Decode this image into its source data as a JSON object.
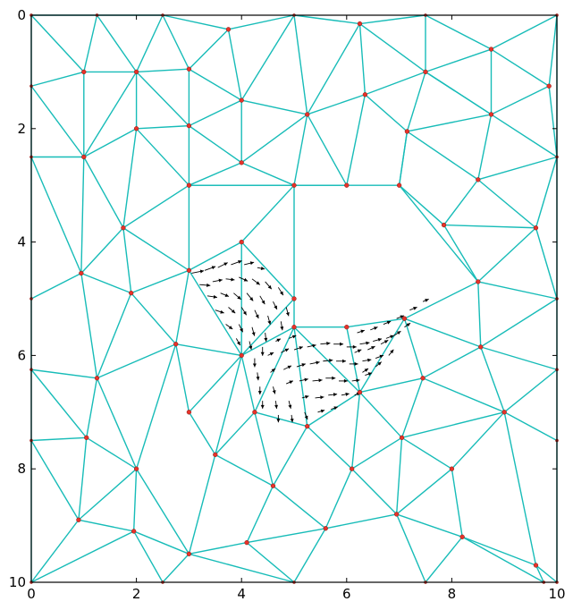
{
  "chart_data": {
    "type": "mesh-quiver",
    "xlim": [
      0,
      10
    ],
    "ylim": [
      0,
      10
    ],
    "y_inverted": true,
    "grid": false,
    "xticks": [
      0,
      2,
      4,
      6,
      8,
      10
    ],
    "yticks": [
      0,
      2,
      4,
      6,
      8,
      10
    ],
    "xtick_labels": [
      "0",
      "2",
      "4",
      "6",
      "8",
      "10"
    ],
    "ytick_labels": [
      "0",
      "2",
      "4",
      "6",
      "8",
      "10"
    ],
    "colors": {
      "mesh": "#17bcb8",
      "nodes": "#e8322a",
      "arrows": "#000000"
    },
    "nodes": [
      [
        0,
        0
      ],
      [
        1.25,
        0
      ],
      [
        2.5,
        0
      ],
      [
        3.75,
        0.25
      ],
      [
        5,
        0
      ],
      [
        6.25,
        0.15
      ],
      [
        7.5,
        0
      ],
      [
        8.75,
        0.6
      ],
      [
        10,
        0
      ],
      [
        0,
        1.25
      ],
      [
        1,
        1
      ],
      [
        2,
        1
      ],
      [
        3,
        0.95
      ],
      [
        4,
        1.5
      ],
      [
        5.25,
        1.75
      ],
      [
        6.35,
        1.4
      ],
      [
        7.5,
        1
      ],
      [
        8.75,
        1.75
      ],
      [
        9.85,
        1.25
      ],
      [
        0,
        2.5
      ],
      [
        1,
        2.5
      ],
      [
        2,
        2
      ],
      [
        3,
        1.95
      ],
      [
        4,
        2.6
      ],
      [
        5,
        3
      ],
      [
        6,
        3
      ],
      [
        7,
        3
      ],
      [
        7.15,
        2.05
      ],
      [
        8.5,
        2.9
      ],
      [
        10,
        2.5
      ],
      [
        1.75,
        3.75
      ],
      [
        3,
        3
      ],
      [
        4,
        4
      ],
      [
        7.85,
        3.7
      ],
      [
        9.6,
        3.75
      ],
      [
        0,
        5
      ],
      [
        0.95,
        4.55
      ],
      [
        1.9,
        4.9
      ],
      [
        3,
        4.5
      ],
      [
        5,
        5
      ],
      [
        6,
        5.5
      ],
      [
        5,
        5.5
      ],
      [
        7.1,
        5.35
      ],
      [
        8.5,
        4.7
      ],
      [
        10,
        5
      ],
      [
        0,
        6.25
      ],
      [
        1.25,
        6.4
      ],
      [
        2.75,
        5.8
      ],
      [
        4,
        6
      ],
      [
        7.45,
        6.4
      ],
      [
        8.55,
        5.85
      ],
      [
        10,
        6.25
      ],
      [
        0,
        7.5
      ],
      [
        1.05,
        7.45
      ],
      [
        2,
        8
      ],
      [
        3,
        7
      ],
      [
        3.5,
        7.75
      ],
      [
        4.25,
        7
      ],
      [
        5.25,
        7.25
      ],
      [
        6.25,
        6.65
      ],
      [
        7.05,
        7.45
      ],
      [
        9,
        7
      ],
      [
        10,
        7.5
      ],
      [
        0,
        10
      ],
      [
        0.9,
        8.9
      ],
      [
        1.95,
        9.1
      ],
      [
        2.5,
        10
      ],
      [
        3,
        9.5
      ],
      [
        4.6,
        8.3
      ],
      [
        4.1,
        9.3
      ],
      [
        5,
        10
      ],
      [
        5.6,
        9.05
      ],
      [
        6.1,
        8.0
      ],
      [
        6.95,
        8.8
      ],
      [
        7.5,
        10
      ],
      [
        8,
        8.0
      ],
      [
        8.2,
        9.2
      ],
      [
        9.6,
        9.7
      ],
      [
        9.75,
        10
      ],
      [
        10,
        10
      ]
    ],
    "edges": [
      [
        0,
        1
      ],
      [
        1,
        2
      ],
      [
        2,
        3
      ],
      [
        3,
        4
      ],
      [
        4,
        5
      ],
      [
        5,
        6
      ],
      [
        6,
        7
      ],
      [
        7,
        8
      ],
      [
        0,
        9
      ],
      [
        0,
        10
      ],
      [
        1,
        10
      ],
      [
        1,
        11
      ],
      [
        2,
        11
      ],
      [
        2,
        12
      ],
      [
        3,
        12
      ],
      [
        3,
        13
      ],
      [
        4,
        13
      ],
      [
        4,
        14
      ],
      [
        5,
        14
      ],
      [
        5,
        15
      ],
      [
        5,
        16
      ],
      [
        6,
        16
      ],
      [
        7,
        16
      ],
      [
        7,
        17
      ],
      [
        7,
        18
      ],
      [
        8,
        18
      ],
      [
        9,
        10
      ],
      [
        10,
        11
      ],
      [
        11,
        12
      ],
      [
        12,
        13
      ],
      [
        13,
        14
      ],
      [
        14,
        15
      ],
      [
        15,
        16
      ],
      [
        16,
        17
      ],
      [
        17,
        18
      ],
      [
        9,
        19
      ],
      [
        9,
        20
      ],
      [
        10,
        20
      ],
      [
        11,
        20
      ],
      [
        11,
        21
      ],
      [
        11,
        22
      ],
      [
        12,
        22
      ],
      [
        13,
        22
      ],
      [
        13,
        23
      ],
      [
        14,
        23
      ],
      [
        14,
        24
      ],
      [
        14,
        25
      ],
      [
        15,
        25
      ],
      [
        15,
        27
      ],
      [
        16,
        27
      ],
      [
        16,
        17
      ],
      [
        17,
        27
      ],
      [
        17,
        28
      ],
      [
        17,
        29
      ],
      [
        18,
        29
      ],
      [
        8,
        29
      ],
      [
        19,
        20
      ],
      [
        20,
        21
      ],
      [
        21,
        22
      ],
      [
        22,
        23
      ],
      [
        23,
        24
      ],
      [
        24,
        25
      ],
      [
        25,
        26
      ],
      [
        26,
        27
      ],
      [
        27,
        28
      ],
      [
        28,
        29
      ],
      [
        19,
        36
      ],
      [
        19,
        35
      ],
      [
        20,
        36
      ],
      [
        20,
        30
      ],
      [
        21,
        30
      ],
      [
        21,
        31
      ],
      [
        22,
        31
      ],
      [
        23,
        31
      ],
      [
        24,
        31
      ],
      [
        25,
        24
      ],
      [
        26,
        33
      ],
      [
        27,
        26
      ],
      [
        28,
        33
      ],
      [
        28,
        34
      ],
      [
        29,
        34
      ],
      [
        26,
        43
      ],
      [
        30,
        31
      ],
      [
        30,
        36
      ],
      [
        30,
        37
      ],
      [
        30,
        38
      ],
      [
        31,
        38
      ],
      [
        31,
        24
      ],
      [
        24,
        32
      ],
      [
        32,
        38
      ],
      [
        24,
        39
      ],
      [
        32,
        39
      ],
      [
        33,
        34
      ],
      [
        33,
        43
      ],
      [
        34,
        43
      ],
      [
        34,
        44
      ],
      [
        29,
        44
      ],
      [
        35,
        36
      ],
      [
        36,
        37
      ],
      [
        37,
        38
      ],
      [
        35,
        45
      ],
      [
        36,
        46
      ],
      [
        37,
        46
      ],
      [
        37,
        47
      ],
      [
        38,
        47
      ],
      [
        38,
        48
      ],
      [
        39,
        41
      ],
      [
        39,
        48
      ],
      [
        32,
        48
      ],
      [
        40,
        41
      ],
      [
        40,
        42
      ],
      [
        42,
        43
      ],
      [
        43,
        44
      ],
      [
        43,
        50
      ],
      [
        42,
        50
      ],
      [
        42,
        49
      ],
      [
        44,
        50
      ],
      [
        44,
        51
      ],
      [
        45,
        46
      ],
      [
        46,
        47
      ],
      [
        47,
        48
      ],
      [
        45,
        52
      ],
      [
        45,
        53
      ],
      [
        46,
        53
      ],
      [
        46,
        54
      ],
      [
        47,
        54
      ],
      [
        47,
        55
      ],
      [
        48,
        55
      ],
      [
        48,
        56
      ],
      [
        48,
        57
      ],
      [
        48,
        41
      ],
      [
        41,
        57
      ],
      [
        41,
        58
      ],
      [
        41,
        59
      ],
      [
        40,
        59
      ],
      [
        42,
        59
      ],
      [
        59,
        49
      ],
      [
        49,
        50
      ],
      [
        50,
        51
      ],
      [
        49,
        61
      ],
      [
        50,
        61
      ],
      [
        51,
        61
      ],
      [
        51,
        62
      ],
      [
        52,
        53
      ],
      [
        53,
        54
      ],
      [
        52,
        64
      ],
      [
        52,
        63
      ],
      [
        53,
        64
      ],
      [
        54,
        64
      ],
      [
        54,
        65
      ],
      [
        54,
        67
      ],
      [
        55,
        56
      ],
      [
        56,
        57
      ],
      [
        57,
        58
      ],
      [
        58,
        59
      ],
      [
        59,
        60
      ],
      [
        60,
        61
      ],
      [
        61,
        62
      ],
      [
        49,
        60
      ],
      [
        56,
        67
      ],
      [
        56,
        68
      ],
      [
        57,
        68
      ],
      [
        58,
        68
      ],
      [
        58,
        72
      ],
      [
        59,
        72
      ],
      [
        60,
        72
      ],
      [
        60,
        73
      ],
      [
        60,
        75
      ],
      [
        61,
        75
      ],
      [
        62,
        79
      ],
      [
        61,
        77
      ],
      [
        63,
        64
      ],
      [
        64,
        65
      ],
      [
        65,
        66
      ],
      [
        63,
        65
      ],
      [
        65,
        67
      ],
      [
        67,
        66
      ],
      [
        67,
        69
      ],
      [
        68,
        69
      ],
      [
        69,
        70
      ],
      [
        68,
        71
      ],
      [
        69,
        71
      ],
      [
        70,
        71
      ],
      [
        71,
        72
      ],
      [
        71,
        73
      ],
      [
        72,
        73
      ],
      [
        73,
        74
      ],
      [
        73,
        75
      ],
      [
        73,
        76
      ],
      [
        74,
        76
      ],
      [
        75,
        76
      ],
      [
        76,
        77
      ],
      [
        76,
        78
      ],
      [
        77,
        79
      ],
      [
        77,
        78
      ],
      [
        70,
        67
      ]
    ],
    "arrows": [
      [
        3.05,
        4.55,
        0.25,
        -0.05
      ],
      [
        3.3,
        4.5,
        0.22,
        -0.08
      ],
      [
        3.55,
        4.45,
        0.2,
        -0.1
      ],
      [
        3.8,
        4.4,
        0.22,
        -0.08
      ],
      [
        4.05,
        4.4,
        0.2,
        -0.05
      ],
      [
        4.3,
        4.45,
        0.15,
        0.03
      ],
      [
        3.2,
        4.75,
        0.22,
        0.02
      ],
      [
        3.45,
        4.7,
        0.2,
        -0.04
      ],
      [
        3.7,
        4.65,
        0.18,
        0.02
      ],
      [
        3.95,
        4.62,
        0.18,
        0.08
      ],
      [
        4.2,
        4.65,
        0.16,
        0.12
      ],
      [
        4.45,
        4.7,
        0.13,
        0.15
      ],
      [
        4.7,
        4.8,
        0.1,
        0.16
      ],
      [
        3.35,
        4.95,
        0.2,
        0.03
      ],
      [
        3.6,
        4.9,
        0.17,
        0.07
      ],
      [
        3.85,
        4.9,
        0.15,
        0.13
      ],
      [
        4.1,
        4.9,
        0.13,
        0.16
      ],
      [
        4.35,
        4.95,
        0.1,
        0.17
      ],
      [
        4.6,
        5.05,
        0.08,
        0.16
      ],
      [
        4.85,
        5.15,
        0.05,
        0.18
      ],
      [
        3.5,
        5.2,
        0.18,
        0.06
      ],
      [
        3.75,
        5.15,
        0.14,
        0.12
      ],
      [
        4.0,
        5.15,
        0.1,
        0.16
      ],
      [
        4.25,
        5.2,
        0.08,
        0.17
      ],
      [
        4.5,
        5.3,
        0.05,
        0.18
      ],
      [
        4.75,
        5.4,
        0.03,
        0.18
      ],
      [
        3.7,
        5.45,
        0.14,
        0.1
      ],
      [
        3.95,
        5.45,
        0.08,
        0.16
      ],
      [
        4.2,
        5.5,
        0.05,
        0.18
      ],
      [
        4.45,
        5.6,
        0.02,
        0.18
      ],
      [
        3.9,
        5.7,
        0.08,
        0.14
      ],
      [
        4.15,
        5.75,
        0.04,
        0.17
      ],
      [
        4.4,
        5.85,
        0.0,
        0.18
      ],
      [
        4.65,
        5.75,
        0.1,
        -0.05
      ],
      [
        4.9,
        5.7,
        0.15,
        -0.06
      ],
      [
        4.25,
        6.05,
        0.0,
        0.18
      ],
      [
        4.5,
        6.0,
        0.12,
        -0.06
      ],
      [
        4.75,
        5.95,
        0.16,
        -0.08
      ],
      [
        5.0,
        5.9,
        0.18,
        -0.06
      ],
      [
        5.25,
        5.85,
        0.18,
        -0.04
      ],
      [
        5.5,
        5.8,
        0.2,
        -0.02
      ],
      [
        5.75,
        5.8,
        0.2,
        0.0
      ],
      [
        6.0,
        5.85,
        0.2,
        0.0
      ],
      [
        6.25,
        5.8,
        0.2,
        -0.03
      ],
      [
        6.5,
        5.75,
        0.18,
        -0.05
      ],
      [
        6.75,
        5.7,
        0.16,
        -0.06
      ],
      [
        4.3,
        6.3,
        0.02,
        0.16
      ],
      [
        4.55,
        6.3,
        0.1,
        -0.08
      ],
      [
        4.8,
        6.25,
        0.16,
        -0.08
      ],
      [
        5.05,
        6.2,
        0.18,
        -0.06
      ],
      [
        5.3,
        6.15,
        0.2,
        -0.04
      ],
      [
        5.55,
        6.1,
        0.2,
        -0.02
      ],
      [
        5.8,
        6.1,
        0.2,
        0.0
      ],
      [
        6.05,
        6.15,
        0.18,
        0.0
      ],
      [
        6.3,
        6.1,
        0.18,
        -0.03
      ],
      [
        6.55,
        6.05,
        0.16,
        -0.06
      ],
      [
        4.35,
        6.55,
        0.0,
        0.16
      ],
      [
        4.6,
        6.55,
        0.04,
        0.15
      ],
      [
        4.85,
        6.5,
        0.14,
        -0.06
      ],
      [
        5.1,
        6.45,
        0.18,
        -0.04
      ],
      [
        5.35,
        6.45,
        0.2,
        -0.02
      ],
      [
        5.6,
        6.4,
        0.2,
        0.0
      ],
      [
        5.85,
        6.45,
        0.18,
        0.0
      ],
      [
        6.1,
        6.45,
        0.16,
        -0.02
      ],
      [
        6.35,
        6.35,
        0.14,
        -0.05
      ],
      [
        4.4,
        6.8,
        0.0,
        0.16
      ],
      [
        4.65,
        6.8,
        0.02,
        0.16
      ],
      [
        4.9,
        6.8,
        0.04,
        0.16
      ],
      [
        5.15,
        6.75,
        0.14,
        -0.04
      ],
      [
        5.4,
        6.75,
        0.18,
        -0.02
      ],
      [
        5.65,
        6.7,
        0.18,
        -0.02
      ],
      [
        5.9,
        6.7,
        0.16,
        -0.03
      ],
      [
        6.15,
        6.7,
        0.12,
        -0.05
      ],
      [
        4.7,
        7.05,
        0.0,
        0.15
      ],
      [
        4.95,
        7.05,
        0.02,
        0.15
      ],
      [
        5.2,
        7.0,
        0.06,
        0.15
      ],
      [
        5.45,
        7.0,
        0.14,
        -0.04
      ],
      [
        5.7,
        6.95,
        0.14,
        -0.05
      ],
      [
        6.2,
        5.6,
        0.15,
        -0.05
      ],
      [
        6.45,
        5.55,
        0.15,
        -0.06
      ],
      [
        6.7,
        5.45,
        0.15,
        -0.06
      ],
      [
        6.95,
        5.35,
        0.15,
        -0.06
      ],
      [
        7.2,
        5.2,
        0.15,
        -0.06
      ],
      [
        7.45,
        5.05,
        0.12,
        -0.05
      ],
      [
        6.15,
        5.95,
        0.14,
        -0.06
      ],
      [
        6.4,
        5.9,
        0.15,
        -0.07
      ],
      [
        6.65,
        5.8,
        0.15,
        -0.08
      ],
      [
        6.9,
        5.65,
        0.14,
        -0.09
      ],
      [
        7.1,
        5.5,
        0.12,
        -0.08
      ],
      [
        6.3,
        6.3,
        0.12,
        -0.08
      ],
      [
        6.55,
        6.2,
        0.12,
        -0.1
      ],
      [
        6.8,
        6.0,
        0.1,
        -0.12
      ]
    ]
  }
}
